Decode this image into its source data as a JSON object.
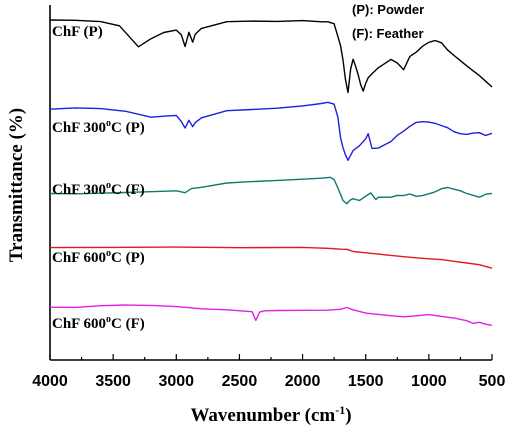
{
  "chart_data": {
    "type": "line",
    "xlabel": "Wavenumber (cm",
    "xlabel_sup": "-1",
    "xlabel_end": ")",
    "ylabel": "Transmittance (%)",
    "xlim": [
      4000,
      500
    ],
    "x_reversed": true,
    "x_ticks": [
      "4000",
      "3500",
      "3000",
      "2500",
      "2000",
      "1500",
      "1000",
      "500"
    ],
    "legend": {
      "placement": "top-right",
      "entries": [
        "(P): Powder",
        "(F): Feather"
      ]
    },
    "series": [
      {
        "name": "ChF (P)",
        "label_main": "ChF (P)",
        "label_sup": "",
        "label_tail": "",
        "color": "#000000",
        "x": [
          4000,
          3800,
          3600,
          3450,
          3300,
          3200,
          3100,
          3000,
          2960,
          2930,
          2900,
          2870,
          2850,
          2800,
          2600,
          2400,
          2200,
          2000,
          1850,
          1800,
          1750,
          1700,
          1680,
          1660,
          1640,
          1620,
          1600,
          1580,
          1560,
          1540,
          1520,
          1500,
          1480,
          1450,
          1400,
          1350,
          1300,
          1250,
          1200,
          1150,
          1100,
          1050,
          1000,
          950,
          900,
          850,
          800,
          750,
          700,
          650,
          600,
          550,
          500
        ],
        "y": [
          15,
          15,
          16,
          20,
          41,
          33,
          27,
          25,
          30,
          42,
          28,
          38,
          30,
          24,
          17,
          16,
          16,
          15,
          16,
          16,
          18,
          40,
          55,
          75,
          88,
          65,
          55,
          62,
          70,
          80,
          86,
          78,
          72,
          68,
          62,
          58,
          54,
          58,
          65,
          52,
          48,
          42,
          38,
          36,
          38,
          45,
          50,
          55,
          60,
          65,
          70,
          76,
          82
        ]
      },
      {
        "name": "ChF 300°C (P)",
        "label_main": "ChF 300",
        "label_sup": "o",
        "label_tail": "C (P)",
        "color": "#1f1fdf",
        "x": [
          4000,
          3800,
          3600,
          3400,
          3200,
          3100,
          3000,
          2960,
          2930,
          2900,
          2870,
          2850,
          2800,
          2600,
          2400,
          2200,
          2000,
          1850,
          1800,
          1750,
          1720,
          1700,
          1680,
          1660,
          1640,
          1600,
          1550,
          1500,
          1480,
          1450,
          1400,
          1350,
          1300,
          1250,
          1200,
          1150,
          1100,
          1050,
          1000,
          950,
          900,
          850,
          800,
          750,
          700,
          650,
          600,
          550,
          500
        ],
        "y": [
          104,
          103,
          104,
          107,
          113,
          112,
          111,
          117,
          123,
          115,
          121,
          117,
          112,
          105,
          104,
          103,
          101,
          99,
          98,
          100,
          113,
          133,
          143,
          150,
          155,
          145,
          140,
          133,
          128,
          143,
          143,
          140,
          137,
          131,
          127,
          122,
          118,
          117,
          117,
          118,
          120,
          122,
          126,
          128,
          129,
          128,
          128,
          131,
          129
        ]
      },
      {
        "name": "ChF 300°C (F)",
        "label_main": "ChF 300",
        "label_sup": "o",
        "label_tail": "C (F)",
        "color": "#117a6e",
        "x": [
          4000,
          3800,
          3600,
          3400,
          3200,
          3000,
          2930,
          2880,
          2800,
          2600,
          2400,
          2200,
          2000,
          1850,
          1780,
          1750,
          1720,
          1700,
          1680,
          1650,
          1620,
          1600,
          1550,
          1500,
          1460,
          1420,
          1400,
          1350,
          1300,
          1250,
          1200,
          1150,
          1100,
          1050,
          1000,
          950,
          900,
          850,
          800,
          750,
          700,
          650,
          600,
          550,
          500
        ],
        "y": [
          189,
          189,
          188,
          187,
          186,
          185,
          187,
          183,
          182,
          178,
          177,
          176,
          175,
          174,
          173,
          175,
          183,
          189,
          195,
          198,
          194,
          193,
          195,
          191,
          188,
          195,
          193,
          193,
          193,
          191,
          191,
          189,
          191,
          190,
          188,
          186,
          183,
          182,
          184,
          186,
          189,
          191,
          193,
          190,
          189
        ]
      },
      {
        "name": "ChF 600°C (P)",
        "label_main": "ChF 600",
        "label_sup": "o",
        "label_tail": "C (P)",
        "color": "#e31a1a",
        "x": [
          4000,
          3500,
          3000,
          2500,
          2000,
          1800,
          1700,
          1650,
          1600,
          1500,
          1400,
          1300,
          1200,
          1100,
          1000,
          900,
          800,
          700,
          600,
          550,
          500
        ],
        "y": [
          242,
          242,
          242,
          243,
          243,
          244,
          245,
          245,
          247,
          248,
          249,
          250,
          251,
          252,
          253,
          254,
          256,
          258,
          260,
          262,
          264
        ]
      },
      {
        "name": "ChF 600°C (F)",
        "label_main": "ChF 600",
        "label_sup": "o",
        "label_tail": "C (F)",
        "color": "#e61ee6",
        "x": [
          4000,
          3800,
          3600,
          3400,
          3200,
          3000,
          2800,
          2600,
          2400,
          2370,
          2340,
          2300,
          2200,
          2000,
          1800,
          1700,
          1650,
          1600,
          1500,
          1400,
          1300,
          1200,
          1100,
          1000,
          900,
          800,
          700,
          650,
          600,
          550,
          500
        ],
        "y": [
          303,
          303,
          301,
          300,
          300,
          301,
          303,
          304,
          306,
          315,
          307,
          306,
          306,
          306,
          306,
          305,
          303,
          305,
          308,
          309,
          310,
          311,
          310,
          309,
          311,
          313,
          316,
          319,
          318,
          320,
          321
        ]
      }
    ]
  }
}
